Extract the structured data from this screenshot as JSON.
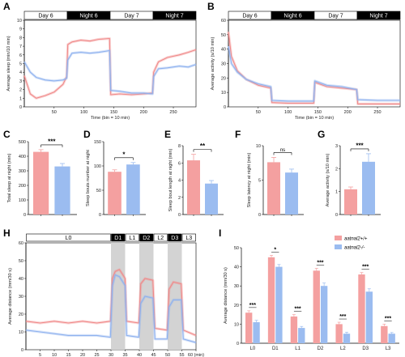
{
  "colors": {
    "wt": "#f4a0a0",
    "mut": "#9bbcf0",
    "wt_line": "#f08a8a",
    "mut_line": "#8fb2ef",
    "gray_band": "#d3d3d3"
  },
  "legend": {
    "wt": "aatnal2+/+",
    "mut": "aatnal2-/-"
  },
  "chart_data": [
    {
      "panel": "A",
      "type": "line",
      "ylabel": "Average sleep (min/10 min)",
      "xlabel": "Time (bin = 10 min)",
      "phases": [
        {
          "label": "Day 6",
          "dark": false,
          "x0": 0,
          "x1": 72
        },
        {
          "label": "Night 6",
          "dark": true,
          "x0": 72,
          "x1": 144
        },
        {
          "label": "Day 7",
          "dark": false,
          "x0": 144,
          "x1": 216
        },
        {
          "label": "Night 7",
          "dark": true,
          "x0": 216,
          "x1": 288
        }
      ],
      "xticks": [
        50,
        100,
        150,
        200,
        250
      ],
      "yticks": [
        0,
        1,
        2,
        3,
        4,
        5,
        6,
        7,
        8,
        9,
        10
      ],
      "xlim": [
        0,
        288
      ],
      "ylim": [
        0,
        10
      ],
      "series": [
        {
          "key": "wt",
          "points": [
            [
              0,
              3.6
            ],
            [
              10,
              1.5
            ],
            [
              20,
              1.0
            ],
            [
              35,
              1.3
            ],
            [
              50,
              1.7
            ],
            [
              65,
              2.6
            ],
            [
              71,
              3.5
            ],
            [
              73,
              7.2
            ],
            [
              80,
              7.5
            ],
            [
              95,
              7.7
            ],
            [
              110,
              7.6
            ],
            [
              125,
              7.8
            ],
            [
              143,
              7.9
            ],
            [
              145,
              1.4
            ],
            [
              160,
              1.5
            ],
            [
              180,
              1.4
            ],
            [
              200,
              1.5
            ],
            [
              215,
              1.6
            ],
            [
              217,
              4.0
            ],
            [
              225,
              5.2
            ],
            [
              240,
              5.7
            ],
            [
              260,
              6.0
            ],
            [
              275,
              6.3
            ],
            [
              288,
              6.6
            ]
          ]
        },
        {
          "key": "mut",
          "points": [
            [
              0,
              5.2
            ],
            [
              10,
              4.0
            ],
            [
              20,
              3.4
            ],
            [
              35,
              3.1
            ],
            [
              50,
              3.0
            ],
            [
              65,
              3.1
            ],
            [
              71,
              3.3
            ],
            [
              73,
              5.4
            ],
            [
              80,
              6.2
            ],
            [
              95,
              6.3
            ],
            [
              110,
              6.2
            ],
            [
              125,
              6.3
            ],
            [
              143,
              6.5
            ],
            [
              145,
              1.9
            ],
            [
              160,
              1.8
            ],
            [
              180,
              1.6
            ],
            [
              200,
              1.6
            ],
            [
              215,
              1.5
            ],
            [
              217,
              3.5
            ],
            [
              225,
              4.4
            ],
            [
              240,
              4.5
            ],
            [
              260,
              4.7
            ],
            [
              275,
              4.6
            ],
            [
              288,
              4.9
            ]
          ]
        }
      ]
    },
    {
      "panel": "B",
      "type": "line",
      "ylabel": "Average activity (s/10 min)",
      "xlabel": "Time (bin = 10 min)",
      "phases": [
        {
          "label": "Day 6",
          "dark": false,
          "x0": 0,
          "x1": 72
        },
        {
          "label": "Night 6",
          "dark": true,
          "x0": 72,
          "x1": 144
        },
        {
          "label": "Day 7",
          "dark": false,
          "x0": 144,
          "x1": 216
        },
        {
          "label": "Night 7",
          "dark": true,
          "x0": 216,
          "x1": 288
        }
      ],
      "xticks": [
        50,
        100,
        150,
        200,
        250
      ],
      "yticks": [
        0,
        10,
        20,
        30,
        40,
        50,
        60
      ],
      "xlim": [
        0,
        288
      ],
      "ylim": [
        0,
        60
      ],
      "series": [
        {
          "key": "wt",
          "points": [
            [
              0,
              52
            ],
            [
              5,
              35
            ],
            [
              15,
              25
            ],
            [
              30,
              19
            ],
            [
              50,
              15
            ],
            [
              71,
              13
            ],
            [
              73,
              3
            ],
            [
              100,
              2.5
            ],
            [
              143,
              2.5
            ],
            [
              145,
              17
            ],
            [
              165,
              14
            ],
            [
              190,
              13
            ],
            [
              215,
              12
            ],
            [
              217,
              2
            ],
            [
              250,
              2
            ],
            [
              288,
              2
            ]
          ]
        },
        {
          "key": "mut",
          "points": [
            [
              0,
              42
            ],
            [
              5,
              30
            ],
            [
              15,
              24
            ],
            [
              30,
              19
            ],
            [
              50,
              16
            ],
            [
              71,
              14
            ],
            [
              73,
              4.5
            ],
            [
              100,
              4
            ],
            [
              143,
              4
            ],
            [
              145,
              18
            ],
            [
              165,
              15
            ],
            [
              190,
              14
            ],
            [
              215,
              12
            ],
            [
              217,
              5
            ],
            [
              250,
              4.5
            ],
            [
              288,
              4.5
            ]
          ]
        }
      ]
    },
    {
      "panel": "C",
      "type": "bar",
      "ylabel": "Total sleep at night (min)",
      "yticks": [
        0,
        100,
        200,
        300,
        400,
        500
      ],
      "ylim": [
        0,
        500
      ],
      "values": [
        430,
        330
      ],
      "errors": [
        15,
        20
      ],
      "significance": "***"
    },
    {
      "panel": "D",
      "type": "bar",
      "ylabel": "Sleep bouts number at night",
      "yticks": [
        0,
        50,
        100,
        150
      ],
      "ylim": [
        0,
        150
      ],
      "values": [
        88,
        103
      ],
      "errors": [
        4,
        4
      ],
      "significance": "*"
    },
    {
      "panel": "E",
      "type": "bar",
      "ylabel": "Sleep bout length at night (min)",
      "yticks": [
        0,
        2,
        4,
        6,
        8
      ],
      "ylim": [
        0,
        8
      ],
      "values": [
        6.3,
        3.6
      ],
      "errors": [
        0.7,
        0.35
      ],
      "significance": "**"
    },
    {
      "panel": "F",
      "type": "bar",
      "ylabel": "Sleep latency at night (min)",
      "yticks": [
        0,
        5,
        10
      ],
      "ylim": [
        0,
        10
      ],
      "values": [
        7.6,
        6.1
      ],
      "errors": [
        0.7,
        0.5
      ],
      "significance": "ns"
    },
    {
      "panel": "G",
      "type": "bar",
      "ylabel": "Average activity (s/10 min)",
      "yticks": [
        0,
        1,
        2,
        3
      ],
      "ylim": [
        0,
        3
      ],
      "values": [
        1.1,
        2.3
      ],
      "errors": [
        0.1,
        0.35
      ],
      "significance": "***"
    },
    {
      "panel": "H",
      "type": "line",
      "ylabel": "Average distance (mm/30 s)",
      "xlabel": "",
      "xtick_labels": [
        "5",
        "10",
        "15",
        "20",
        "25",
        "30",
        "35",
        "40",
        "45",
        "50",
        "55",
        "60 (min)"
      ],
      "xticks": [
        5,
        10,
        15,
        20,
        25,
        30,
        35,
        40,
        45,
        50,
        55,
        60
      ],
      "yticks": [
        0,
        10,
        20,
        30,
        40,
        50,
        60
      ],
      "xlim": [
        0,
        60
      ],
      "ylim": [
        0,
        60
      ],
      "phases": [
        {
          "label": "L0",
          "dark": false,
          "x0": 0,
          "x1": 30
        },
        {
          "label": "D1",
          "dark": true,
          "x0": 30,
          "x1": 35
        },
        {
          "label": "L1",
          "dark": false,
          "x0": 35,
          "x1": 40
        },
        {
          "label": "D2",
          "dark": true,
          "x0": 40,
          "x1": 45
        },
        {
          "label": "L2",
          "dark": false,
          "x0": 45,
          "x1": 50
        },
        {
          "label": "D3",
          "dark": true,
          "x0": 50,
          "x1": 55
        },
        {
          "label": "L3",
          "dark": false,
          "x0": 55,
          "x1": 60
        }
      ],
      "series": [
        {
          "key": "wt",
          "points": [
            [
              0,
              16
            ],
            [
              5,
              15
            ],
            [
              10,
              16
            ],
            [
              15,
              15
            ],
            [
              20,
              16
            ],
            [
              25,
              15
            ],
            [
              29.8,
              16
            ],
            [
              30.5,
              40
            ],
            [
              31.5,
              44
            ],
            [
              33,
              45
            ],
            [
              35,
              40
            ],
            [
              35.5,
              16
            ],
            [
              39.8,
              15
            ],
            [
              40.5,
              37
            ],
            [
              42,
              40
            ],
            [
              44.8,
              39
            ],
            [
              45.5,
              12
            ],
            [
              49.8,
              11
            ],
            [
              50.5,
              34
            ],
            [
              52,
              38
            ],
            [
              54.8,
              37
            ],
            [
              55.5,
              11
            ],
            [
              60,
              8
            ]
          ]
        },
        {
          "key": "mut",
          "points": [
            [
              0,
              11
            ],
            [
              5,
              10
            ],
            [
              10,
              9
            ],
            [
              15,
              8
            ],
            [
              20,
              8
            ],
            [
              25,
              8
            ],
            [
              29.8,
              7
            ],
            [
              30.5,
              36
            ],
            [
              31.5,
              42
            ],
            [
              33,
              41
            ],
            [
              35,
              36
            ],
            [
              35.5,
              8
            ],
            [
              39.8,
              7
            ],
            [
              40.5,
              26
            ],
            [
              42,
              30
            ],
            [
              44.8,
              29
            ],
            [
              45.5,
              6
            ],
            [
              49.8,
              6
            ],
            [
              50.5,
              24
            ],
            [
              52,
              28
            ],
            [
              54.8,
              28
            ],
            [
              55.5,
              6
            ],
            [
              60,
              4
            ]
          ]
        }
      ]
    },
    {
      "panel": "I",
      "type": "bar",
      "ylabel": "Average distance (mm/30 s)",
      "categories": [
        "L0",
        "D1",
        "L1",
        "D2",
        "L2",
        "D3",
        "L3"
      ],
      "yticks": [
        0,
        10,
        20,
        30,
        40,
        50
      ],
      "ylim": [
        0,
        50
      ],
      "series": [
        {
          "key": "wt",
          "values": [
            16,
            45,
            14,
            38,
            10,
            36,
            9
          ],
          "errors": [
            1,
            1,
            1,
            1.2,
            1,
            1,
            1
          ]
        },
        {
          "key": "mut",
          "values": [
            11,
            40,
            8,
            30,
            5,
            27,
            5
          ],
          "errors": [
            1,
            1.2,
            0.8,
            1.5,
            0.8,
            1.5,
            0.6
          ]
        }
      ],
      "significance": [
        "***",
        "*",
        "***",
        "***",
        "***",
        "***",
        "***"
      ]
    }
  ]
}
